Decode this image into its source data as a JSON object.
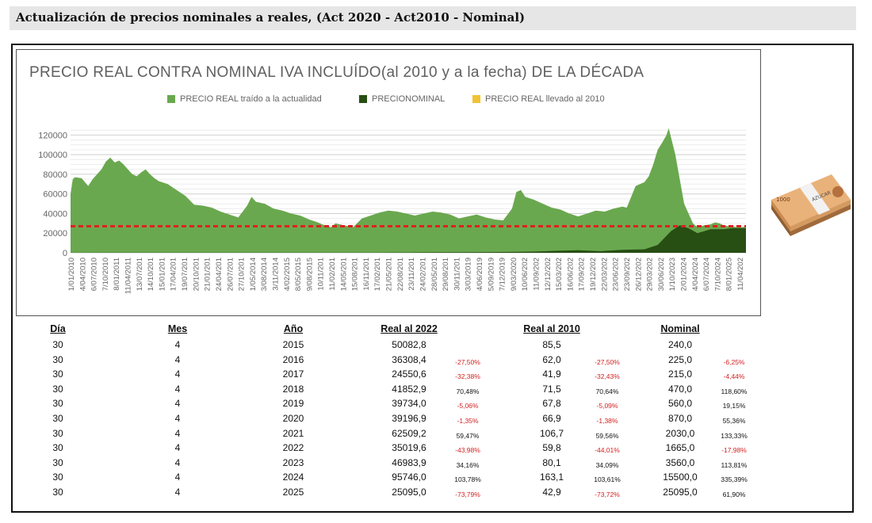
{
  "header": {
    "title": "Actualización de precios nominales a reales, (Act 2020 - Act2010 - Nominal)"
  },
  "chart_data": {
    "type": "area",
    "title": "PRECIO REAL CONTRA NOMINAL IVA INCLUÍDO(al 2010 y a la fecha) DE LA  DÉCADA",
    "legend": [
      {
        "label": "PRECIO REAL traído a la actualidad",
        "color": "#6aa84f"
      },
      {
        "label": "PRECIONOMINAL",
        "color": "#274e13"
      },
      {
        "label": "PRECIO REAL llevado al 2010",
        "color": "#f1c232"
      }
    ],
    "ylim": [
      0,
      130000
    ],
    "yticks": [
      "0",
      "20000",
      "40000",
      "60000",
      "80000",
      "100000",
      "120000"
    ],
    "reference_line": 27000,
    "xticks": [
      "1/01/2010",
      "4/04/2010",
      "6/07/2010",
      "7/10/2010",
      "8/01/2011",
      "11/04/2011",
      "13/07/201",
      "14/10/201",
      "15/01/201",
      "17/04/201",
      "19/07/201",
      "20/10/201",
      "21/01/201",
      "24/04/201",
      "26/07/201",
      "27/10/201",
      "1/05/2014",
      "3/08/2014",
      "3/11/2014",
      "4/02/2015",
      "8/05/2015",
      "9/08/2015",
      "10/11/201",
      "11/02/201",
      "14/05/201",
      "15/08/201",
      "16/11/201",
      "17/02/201",
      "21/05/201",
      "22/08/201",
      "23/11/201",
      "24/02/201",
      "28/05/201",
      "29/08/201",
      "30/11/201",
      "3/03/2019",
      "4/06/2019",
      "5/09/2019",
      "7/12/2019",
      "9/03/2020",
      "10/06/202",
      "11/09/202",
      "12/12/202",
      "15/03/202",
      "16/06/202",
      "17/09/202",
      "19/12/202",
      "22/03/202",
      "23/06/202",
      "23/09/202",
      "26/12/202",
      "29/03/202",
      "30/06/202",
      "1/10/2023",
      "2/01/2024",
      "4/04/2024",
      "6/07/2024",
      "7/10/2024",
      "8/01/2025",
      "11/04/202"
    ],
    "series": [
      {
        "name": "PRECIO REAL traído a la actualidad",
        "x": [
          2010.0,
          2010.05,
          2010.1,
          2010.25,
          2010.4,
          2010.5,
          2010.6,
          2010.7,
          2010.8,
          2010.9,
          2011.0,
          2011.1,
          2011.2,
          2011.3,
          2011.4,
          2011.5,
          2011.6,
          2011.7,
          2011.8,
          2011.9,
          2012.0,
          2012.2,
          2012.4,
          2012.6,
          2012.8,
          2013.0,
          2013.2,
          2013.4,
          2013.6,
          2013.8,
          2014.0,
          2014.1,
          2014.2,
          2014.4,
          2014.6,
          2014.8,
          2015.0,
          2015.2,
          2015.4,
          2015.6,
          2015.7,
          2015.9,
          2016.0,
          2016.2,
          2016.4,
          2016.6,
          2016.8,
          2017.0,
          2017.2,
          2017.4,
          2017.6,
          2017.8,
          2018.0,
          2018.2,
          2018.4,
          2018.6,
          2018.8,
          2019.0,
          2019.2,
          2019.4,
          2019.6,
          2019.8,
          2020.0,
          2020.1,
          2020.2,
          2020.3,
          2020.5,
          2020.7,
          2020.9,
          2021.1,
          2021.3,
          2021.5,
          2021.7,
          2021.9,
          2022.1,
          2022.3,
          2022.4,
          2022.5,
          2022.6,
          2022.8,
          2023.0,
          2023.1,
          2023.2,
          2023.3,
          2023.4,
          2023.5,
          2023.55,
          2023.6,
          2023.7,
          2023.8,
          2023.9,
          2024.0,
          2024.1,
          2024.2,
          2024.35,
          2024.5,
          2024.6,
          2024.7,
          2024.8,
          2024.9,
          2025.0,
          2025.1,
          2025.2,
          2025.3
        ],
        "y": [
          60000,
          75000,
          77000,
          76000,
          68000,
          75000,
          80000,
          85000,
          93000,
          97000,
          92000,
          94000,
          90000,
          85000,
          80000,
          78000,
          82000,
          85000,
          80000,
          76000,
          73000,
          70000,
          64000,
          58000,
          49000,
          48000,
          46000,
          42000,
          39000,
          36000,
          48000,
          57000,
          52000,
          50000,
          45000,
          43000,
          40000,
          38000,
          34000,
          31000,
          29000,
          26000,
          30000,
          28000,
          26000,
          35000,
          38000,
          41000,
          43000,
          42000,
          40000,
          38000,
          40000,
          42000,
          41000,
          39000,
          35000,
          37000,
          39000,
          36000,
          34000,
          33000,
          45000,
          62000,
          64000,
          57000,
          54000,
          50000,
          46000,
          44000,
          40000,
          37000,
          40000,
          43000,
          42000,
          45000,
          46000,
          47000,
          46000,
          68000,
          72000,
          78000,
          90000,
          105000,
          112000,
          120000,
          127000,
          118000,
          100000,
          75000,
          50000,
          40000,
          30000,
          26000,
          28000,
          29000,
          31000,
          30000,
          28000,
          27000,
          27000,
          26000,
          26000,
          27000
        ]
      },
      {
        "name": "PRECIONOMINAL",
        "x": [
          2010.0,
          2011.0,
          2012.0,
          2013.0,
          2014.0,
          2015.0,
          2016.0,
          2017.0,
          2018.0,
          2019.0,
          2019.5,
          2020.0,
          2020.5,
          2021.0,
          2021.5,
          2022.0,
          2022.5,
          2023.0,
          2023.3,
          2023.6,
          2023.8,
          2024.0,
          2024.2,
          2024.5,
          2024.8,
          2025.0,
          2025.3
        ],
        "y": [
          150,
          170,
          190,
          210,
          230,
          240,
          225,
          215,
          470,
          560,
          700,
          870,
          1200,
          2030,
          2600,
          1665,
          3000,
          3560,
          8000,
          22000,
          28000,
          25000,
          20000,
          24000,
          24000,
          25095,
          25000
        ]
      },
      {
        "name": "PRECIO REAL llevado al 2010",
        "x": [
          2010.0,
          2025.3
        ],
        "y": [
          0,
          0
        ]
      }
    ]
  },
  "table": {
    "headers": [
      "Día",
      "Mes",
      "Año",
      "Real al 2022",
      "Real al 2010",
      "Nominal"
    ],
    "rows": [
      {
        "dia": "30",
        "mes": "4",
        "anio": "2015",
        "real2022": "50082,8",
        "p1": "",
        "real2010": "85,5",
        "p2": "",
        "nominal": "240,0",
        "p3": ""
      },
      {
        "dia": "30",
        "mes": "4",
        "anio": "2016",
        "real2022": "36308,4",
        "p1": "-27,50%",
        "real2010": "62,0",
        "p2": "-27,50%",
        "nominal": "225,0",
        "p3": "-6,25%"
      },
      {
        "dia": "30",
        "mes": "4",
        "anio": "2017",
        "real2022": "24550,6",
        "p1": "-32,38%",
        "real2010": "41,9",
        "p2": "-32,43%",
        "nominal": "215,0",
        "p3": "-4,44%"
      },
      {
        "dia": "30",
        "mes": "4",
        "anio": "2018",
        "real2022": "41852,9",
        "p1": "70,48%",
        "real2010": "71,5",
        "p2": "70,64%",
        "nominal": "470,0",
        "p3": "118,60%"
      },
      {
        "dia": "30",
        "mes": "4",
        "anio": "2019",
        "real2022": "39734,0",
        "p1": "-5,06%",
        "real2010": "67,8",
        "p2": "-5,09%",
        "nominal": "560,0",
        "p3": "19,15%"
      },
      {
        "dia": "30",
        "mes": "4",
        "anio": "2020",
        "real2022": "39196,9",
        "p1": "-1,35%",
        "real2010": "66,9",
        "p2": "-1,38%",
        "nominal": "870,0",
        "p3": "55,36%"
      },
      {
        "dia": "30",
        "mes": "4",
        "anio": "2021",
        "real2022": "62509,2",
        "p1": "59,47%",
        "real2010": "106,7",
        "p2": "59,56%",
        "nominal": "2030,0",
        "p3": "133,33%"
      },
      {
        "dia": "30",
        "mes": "4",
        "anio": "2022",
        "real2022": "35019,6",
        "p1": "-43,98%",
        "real2010": "59,8",
        "p2": "-44,01%",
        "nominal": "1665,0",
        "p3": "-17,98%"
      },
      {
        "dia": "30",
        "mes": "4",
        "anio": "2023",
        "real2022": "46983,9",
        "p1": "34,16%",
        "real2010": "80,1",
        "p2": "34,09%",
        "nominal": "3560,0",
        "p3": "113,81%"
      },
      {
        "dia": "30",
        "mes": "4",
        "anio": "2024",
        "real2022": "95746,0",
        "p1": "103,78%",
        "real2010": "163,1",
        "p2": "103,61%",
        "nominal": "15500,0",
        "p3": "335,39%"
      },
      {
        "dia": "30",
        "mes": "4",
        "anio": "2025",
        "real2022": "25095,0",
        "p1": "-73,79%",
        "real2010": "42,9",
        "p2": "-73,72%",
        "nominal": "25095,0",
        "p3": "61,90%"
      }
    ]
  },
  "banknote": {
    "denomination": "1000",
    "label": "AZUCAR",
    "colors": {
      "note": "#e9b27a",
      "note_dark": "#c98a4f",
      "band": "#f2f2f2"
    }
  }
}
